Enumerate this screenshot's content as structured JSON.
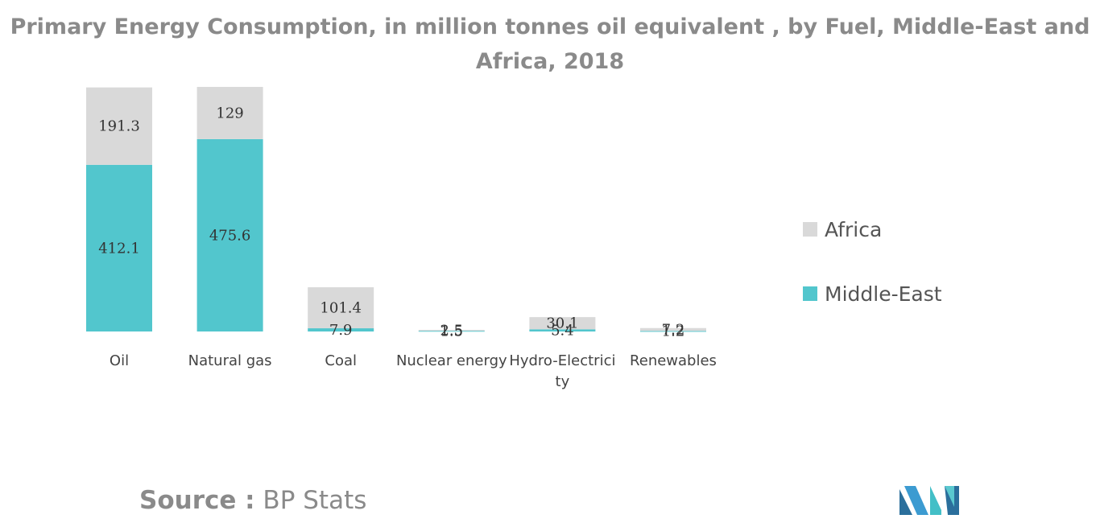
{
  "chart_data": {
    "type": "bar",
    "stacked": true,
    "title": "Primary Energy Consumption, in million tonnes oil equivalent , by Fuel, Middle-East and Africa, 2018",
    "categories": [
      "Oil",
      "Natural gas",
      "Coal",
      "Nuclear energy",
      "Hydro-Electricity",
      "Renewables"
    ],
    "series": [
      {
        "name": "Middle-East",
        "values": [
          412.1,
          475.6,
          7.9,
          1.5,
          5.4,
          1.2
        ],
        "color": "#52c6cd"
      },
      {
        "name": "Africa",
        "values": [
          191.3,
          129,
          101.4,
          2.5,
          30.1,
          7.2
        ],
        "color": "#d9d9d9"
      }
    ],
    "data_labels": {
      "Middle-East": [
        "412.1",
        "475.6",
        "7.9",
        "1.5",
        "5.4",
        "1.2"
      ],
      "Africa": [
        "191.3",
        "129",
        "101.4",
        "2.5",
        "30.1",
        "7.2"
      ]
    },
    "ylim": [
      0,
      604.7
    ],
    "grid": false,
    "legend_position": "right",
    "legend_order": [
      "Africa",
      "Middle-East"
    ]
  },
  "source": {
    "key": "Source :",
    "value": " BP Stats"
  },
  "logo_icon": "mordor-intelligence-logo"
}
